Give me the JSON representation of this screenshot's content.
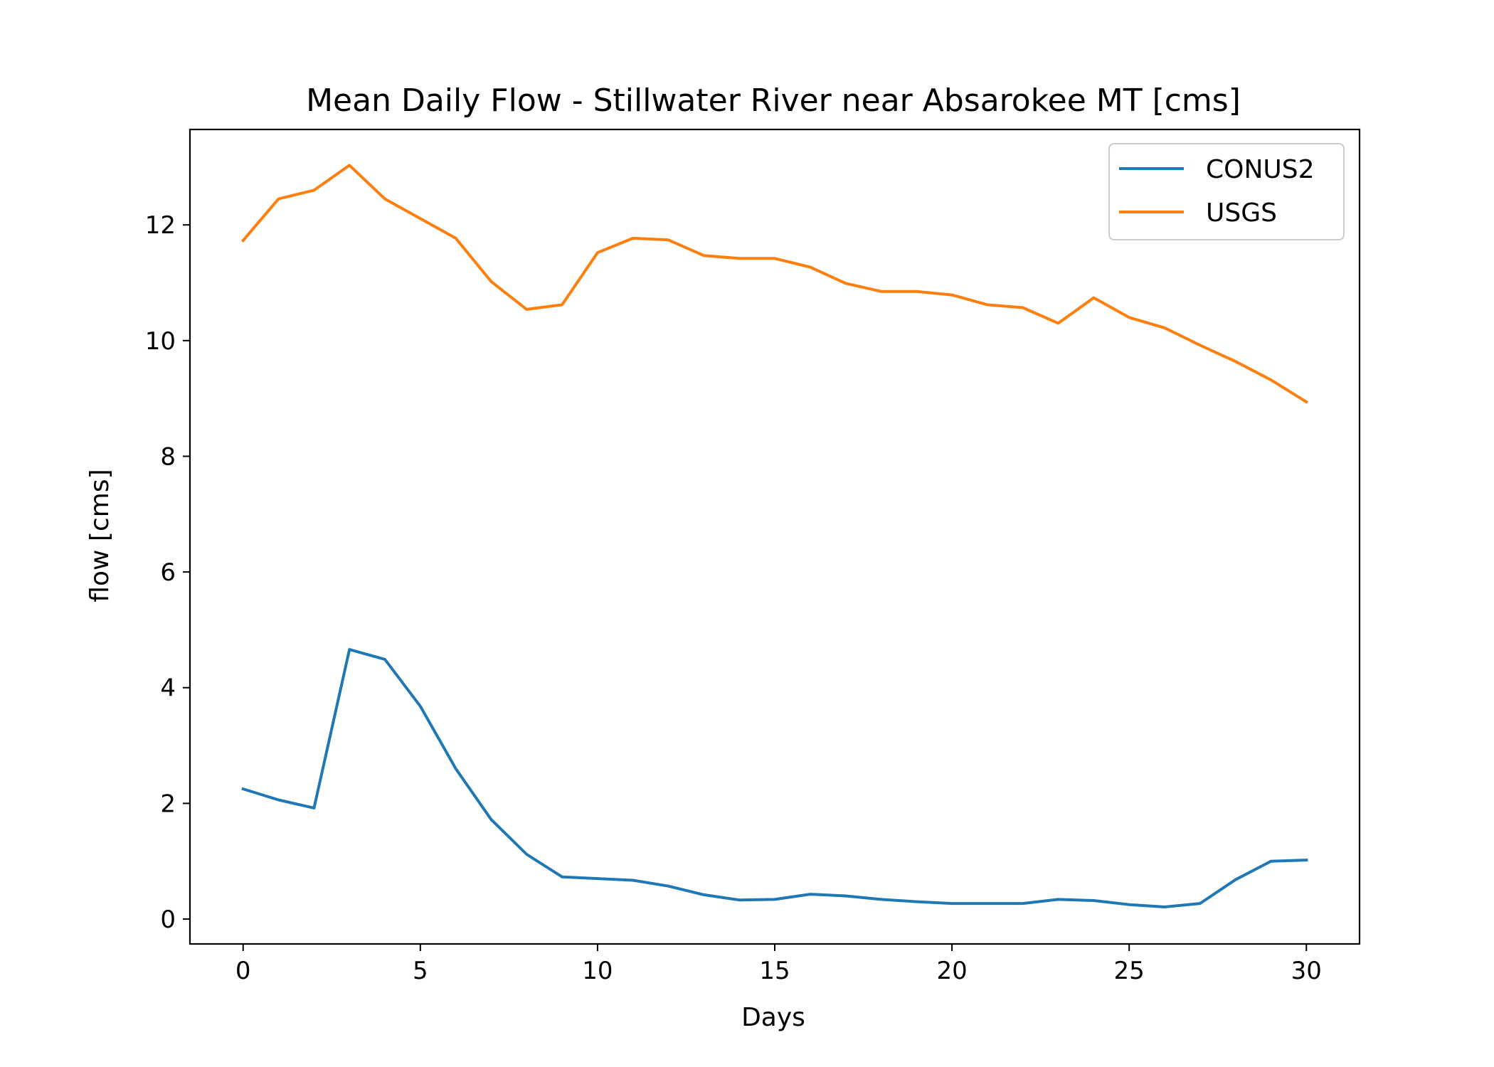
{
  "chart_data": {
    "type": "line",
    "title": "Mean Daily Flow - Stillwater River near Absarokee MT [cms]",
    "xlabel": "Days",
    "ylabel": "flow [cms]",
    "xlim": [
      -1.5,
      31.5
    ],
    "ylim": [
      -0.43,
      13.65
    ],
    "xticks": [
      0,
      5,
      10,
      15,
      20,
      25,
      30
    ],
    "yticks": [
      0,
      2,
      4,
      6,
      8,
      10,
      12
    ],
    "grid": false,
    "legend_position": "top-right",
    "x": [
      0,
      1,
      2,
      3,
      4,
      5,
      6,
      7,
      8,
      9,
      10,
      11,
      12,
      13,
      14,
      15,
      16,
      17,
      18,
      19,
      20,
      21,
      22,
      23,
      24,
      25,
      26,
      27,
      28,
      29,
      30
    ],
    "series": [
      {
        "name": "CONUS2",
        "color": "#1f77b4",
        "values": [
          2.25,
          2.06,
          1.92,
          4.66,
          4.49,
          3.68,
          2.6,
          1.72,
          1.12,
          0.73,
          0.7,
          0.67,
          0.57,
          0.42,
          0.33,
          0.34,
          0.43,
          0.4,
          0.34,
          0.3,
          0.27,
          0.27,
          0.27,
          0.34,
          0.32,
          0.25,
          0.21,
          0.27,
          0.68,
          1.0,
          1.02
        ]
      },
      {
        "name": "USGS",
        "color": "#ff7f0e",
        "values": [
          11.73,
          12.45,
          12.6,
          13.03,
          12.45,
          12.11,
          11.77,
          11.02,
          10.54,
          10.62,
          11.52,
          11.77,
          11.74,
          11.47,
          11.42,
          11.42,
          11.27,
          10.99,
          10.85,
          10.85,
          10.79,
          10.62,
          10.57,
          10.3,
          10.74,
          10.4,
          10.22,
          9.92,
          9.64,
          9.32,
          8.94
        ]
      }
    ]
  }
}
